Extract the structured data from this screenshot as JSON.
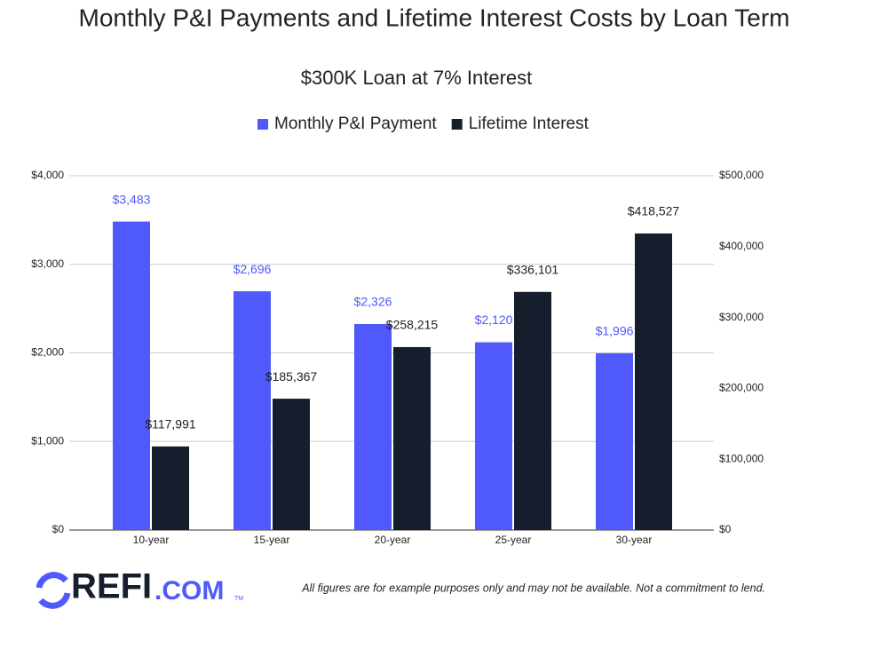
{
  "chart_data": {
    "type": "bar",
    "title": "Monthly P&I Payments and Lifetime Interest Costs by Loan Term",
    "subtitle": "$300K Loan at 7% Interest",
    "categories": [
      "10-year",
      "15-year",
      "20-year",
      "25-year",
      "30-year"
    ],
    "series": [
      {
        "name": "Monthly P&I Payment",
        "color": "#5059fc",
        "values": [
          3483,
          2696,
          2326,
          2120,
          1996
        ],
        "value_labels": [
          "$3,483",
          "$2,696",
          "$2,326",
          "$2,120",
          "$1,996"
        ]
      },
      {
        "name": "Lifetime Interest",
        "color": "#161e2d",
        "axis": "y2",
        "values": [
          117991,
          185367,
          258215,
          336101,
          418527
        ],
        "value_labels": [
          "$117,991",
          "$185,367",
          "$258,215",
          "$336,101",
          "$418,527"
        ]
      }
    ],
    "ylim": [
      0,
      4000
    ],
    "yticks": [
      {
        "value": 0,
        "label": "$0"
      },
      {
        "value": 1000,
        "label": "$1,000"
      },
      {
        "value": 2000,
        "label": "$2,000"
      },
      {
        "value": 3000,
        "label": "$3,000"
      },
      {
        "value": 4000,
        "label": "$4,000"
      }
    ],
    "y2lim": [
      0,
      500000
    ],
    "y2ticks": [
      {
        "value": 0,
        "label": "$0"
      },
      {
        "value": 100000,
        "label": "$100,000"
      },
      {
        "value": 200000,
        "label": "$200,000"
      },
      {
        "value": 300000,
        "label": "$300,000"
      },
      {
        "value": 400000,
        "label": "$400,000"
      },
      {
        "value": 500000,
        "label": "$500,000"
      }
    ],
    "grid": true,
    "legend": "top"
  },
  "footer": {
    "logo_main": "REFI",
    "logo_suffix": ".COM",
    "logo_mark": "TM",
    "disclaimer": "All figures are for example purposes only and may not be available. Not a commitment to lend."
  }
}
